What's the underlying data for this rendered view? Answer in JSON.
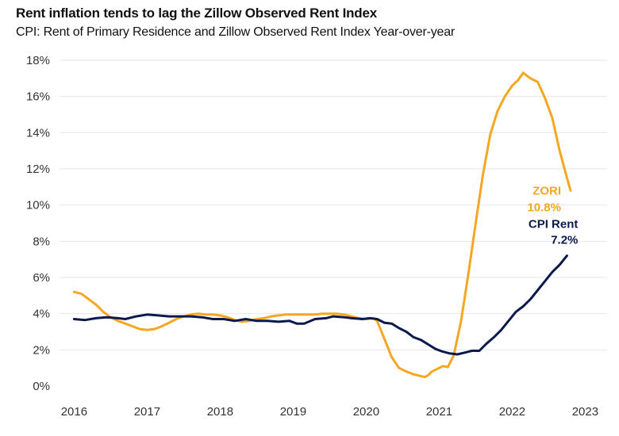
{
  "title": "Rent inflation tends to lag the Zillow Observed Rent Index",
  "subtitle": "CPI: Rent of Primary Residence and Zillow Observed Rent Index Year-over-year",
  "colors": {
    "zori": "#f5a623",
    "cpi": "#0b1a4d",
    "grid": "#e6e6e6"
  },
  "chart_data": {
    "type": "line",
    "title": "Rent inflation tends to lag the Zillow Observed Rent Index",
    "subtitle": "CPI: Rent of Primary Residence and Zillow Observed Rent Index Year-over-year",
    "xlabel": "",
    "ylabel": "",
    "xlim": [
      2015.8,
      2023.3
    ],
    "ylim": [
      0,
      18
    ],
    "y_ticks": [
      0,
      2,
      4,
      6,
      8,
      10,
      12,
      14,
      16,
      18
    ],
    "y_tick_labels": [
      "0%",
      "2%",
      "4%",
      "6%",
      "8%",
      "10%",
      "12%",
      "14%",
      "16%",
      "18%"
    ],
    "x_ticks": [
      2016,
      2017,
      2018,
      2019,
      2020,
      2021,
      2022,
      2023
    ],
    "x_tick_labels": [
      "2016",
      "2017",
      "2018",
      "2019",
      "2020",
      "2021",
      "2022",
      "2023"
    ],
    "grid": "horizontal",
    "series": [
      {
        "name": "ZORI",
        "end_value_label": "10.8%",
        "points": [
          [
            2016.0,
            5.2
          ],
          [
            2016.1,
            5.1
          ],
          [
            2016.2,
            4.8
          ],
          [
            2016.3,
            4.5
          ],
          [
            2016.4,
            4.1
          ],
          [
            2016.5,
            3.8
          ],
          [
            2016.6,
            3.6
          ],
          [
            2016.7,
            3.45
          ],
          [
            2016.8,
            3.3
          ],
          [
            2016.9,
            3.15
          ],
          [
            2017.0,
            3.1
          ],
          [
            2017.1,
            3.15
          ],
          [
            2017.2,
            3.3
          ],
          [
            2017.3,
            3.5
          ],
          [
            2017.4,
            3.7
          ],
          [
            2017.5,
            3.85
          ],
          [
            2017.6,
            3.95
          ],
          [
            2017.7,
            4.0
          ],
          [
            2017.8,
            3.95
          ],
          [
            2017.9,
            3.95
          ],
          [
            2018.0,
            3.9
          ],
          [
            2018.1,
            3.8
          ],
          [
            2018.2,
            3.65
          ],
          [
            2018.3,
            3.55
          ],
          [
            2018.4,
            3.6
          ],
          [
            2018.5,
            3.7
          ],
          [
            2018.6,
            3.75
          ],
          [
            2018.7,
            3.85
          ],
          [
            2018.8,
            3.9
          ],
          [
            2018.9,
            3.95
          ],
          [
            2019.0,
            3.95
          ],
          [
            2019.1,
            3.95
          ],
          [
            2019.2,
            3.95
          ],
          [
            2019.3,
            3.95
          ],
          [
            2019.4,
            4.0
          ],
          [
            2019.5,
            4.0
          ],
          [
            2019.6,
            4.0
          ],
          [
            2019.7,
            3.95
          ],
          [
            2019.8,
            3.85
          ],
          [
            2019.9,
            3.75
          ],
          [
            2020.0,
            3.7
          ],
          [
            2020.1,
            3.75
          ],
          [
            2020.15,
            3.6
          ],
          [
            2020.25,
            2.6
          ],
          [
            2020.35,
            1.6
          ],
          [
            2020.45,
            1.0
          ],
          [
            2020.55,
            0.8
          ],
          [
            2020.65,
            0.65
          ],
          [
            2020.75,
            0.55
          ],
          [
            2020.8,
            0.5
          ],
          [
            2020.85,
            0.6
          ],
          [
            2020.9,
            0.8
          ],
          [
            2021.0,
            1.0
          ],
          [
            2021.05,
            1.1
          ],
          [
            2021.12,
            1.05
          ],
          [
            2021.2,
            1.7
          ],
          [
            2021.3,
            3.6
          ],
          [
            2021.4,
            6.2
          ],
          [
            2021.5,
            9.0
          ],
          [
            2021.6,
            11.7
          ],
          [
            2021.7,
            13.9
          ],
          [
            2021.8,
            15.2
          ],
          [
            2021.9,
            16.0
          ],
          [
            2022.0,
            16.6
          ],
          [
            2022.08,
            16.9
          ],
          [
            2022.15,
            17.3
          ],
          [
            2022.25,
            17.0
          ],
          [
            2022.35,
            16.8
          ],
          [
            2022.45,
            15.9
          ],
          [
            2022.55,
            14.8
          ],
          [
            2022.65,
            13.0
          ],
          [
            2022.75,
            11.5
          ],
          [
            2022.8,
            10.8
          ]
        ]
      },
      {
        "name": "CPI Rent",
        "end_value_label": "7.2%",
        "points": [
          [
            2016.0,
            3.7
          ],
          [
            2016.15,
            3.65
          ],
          [
            2016.3,
            3.75
          ],
          [
            2016.45,
            3.8
          ],
          [
            2016.6,
            3.75
          ],
          [
            2016.7,
            3.7
          ],
          [
            2016.85,
            3.85
          ],
          [
            2017.0,
            3.95
          ],
          [
            2017.15,
            3.9
          ],
          [
            2017.3,
            3.85
          ],
          [
            2017.45,
            3.85
          ],
          [
            2017.6,
            3.85
          ],
          [
            2017.75,
            3.8
          ],
          [
            2017.9,
            3.7
          ],
          [
            2018.05,
            3.7
          ],
          [
            2018.2,
            3.6
          ],
          [
            2018.35,
            3.7
          ],
          [
            2018.5,
            3.6
          ],
          [
            2018.65,
            3.6
          ],
          [
            2018.8,
            3.55
          ],
          [
            2018.95,
            3.6
          ],
          [
            2019.05,
            3.45
          ],
          [
            2019.15,
            3.45
          ],
          [
            2019.3,
            3.7
          ],
          [
            2019.45,
            3.75
          ],
          [
            2019.55,
            3.85
          ],
          [
            2019.7,
            3.8
          ],
          [
            2019.8,
            3.75
          ],
          [
            2019.95,
            3.7
          ],
          [
            2020.05,
            3.75
          ],
          [
            2020.15,
            3.7
          ],
          [
            2020.25,
            3.5
          ],
          [
            2020.35,
            3.45
          ],
          [
            2020.45,
            3.2
          ],
          [
            2020.55,
            3.0
          ],
          [
            2020.65,
            2.7
          ],
          [
            2020.75,
            2.55
          ],
          [
            2020.85,
            2.3
          ],
          [
            2020.95,
            2.05
          ],
          [
            2021.05,
            1.9
          ],
          [
            2021.15,
            1.8
          ],
          [
            2021.25,
            1.75
          ],
          [
            2021.35,
            1.85
          ],
          [
            2021.45,
            1.95
          ],
          [
            2021.55,
            1.95
          ],
          [
            2021.65,
            2.35
          ],
          [
            2021.75,
            2.7
          ],
          [
            2021.85,
            3.1
          ],
          [
            2021.95,
            3.6
          ],
          [
            2022.05,
            4.1
          ],
          [
            2022.15,
            4.4
          ],
          [
            2022.25,
            4.8
          ],
          [
            2022.35,
            5.3
          ],
          [
            2022.45,
            5.8
          ],
          [
            2022.55,
            6.3
          ],
          [
            2022.65,
            6.7
          ],
          [
            2022.75,
            7.2
          ]
        ]
      }
    ]
  }
}
